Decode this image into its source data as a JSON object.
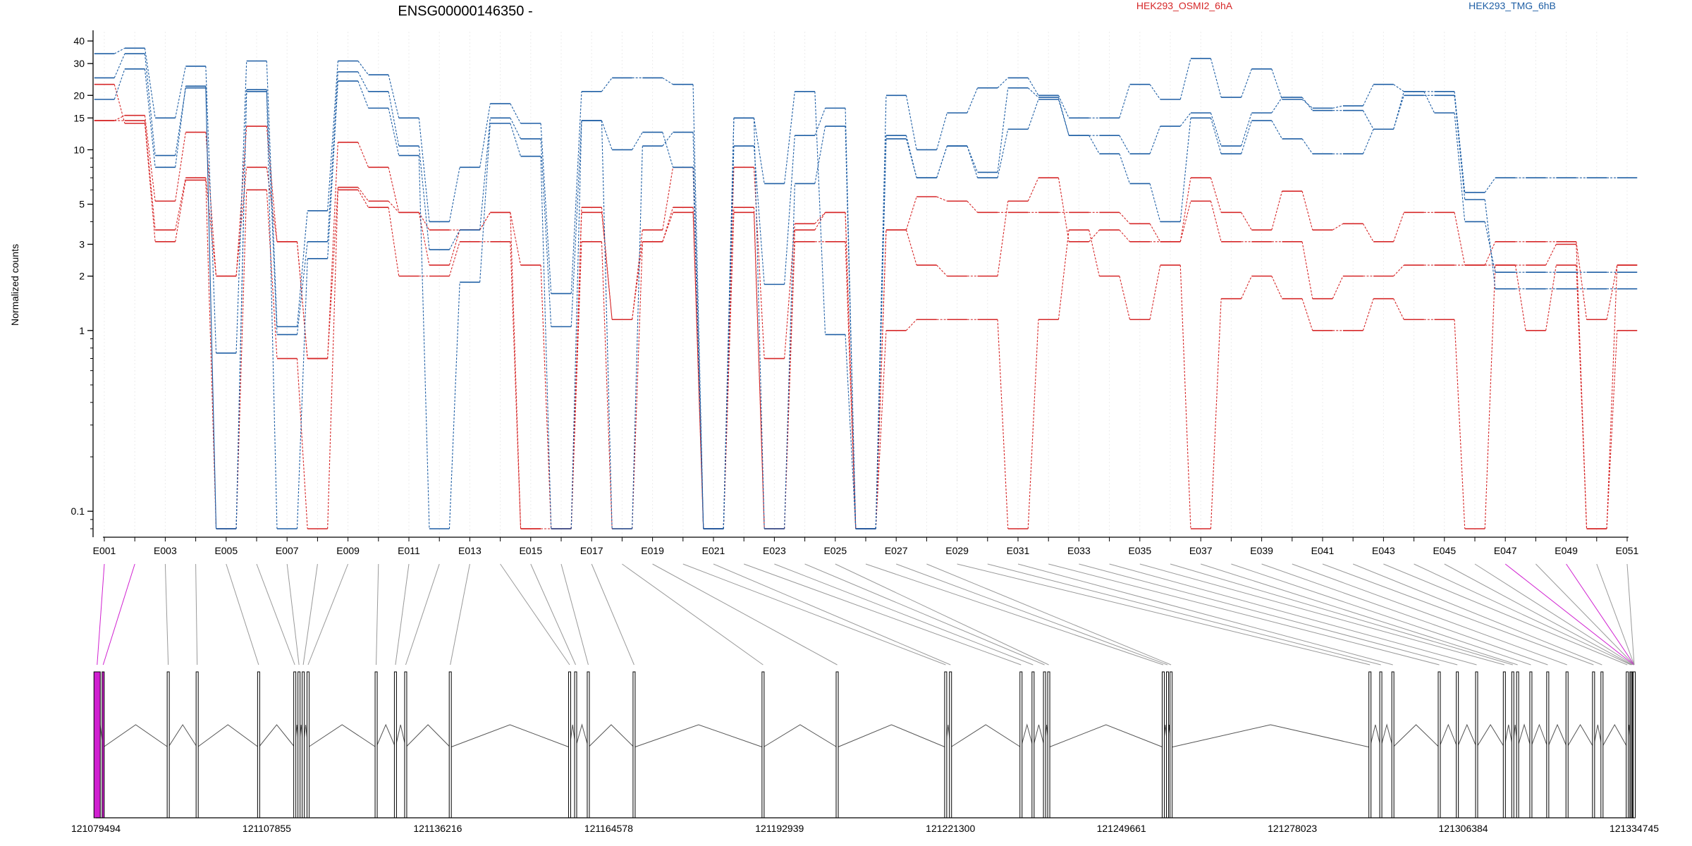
{
  "chart_data": {
    "type": "line",
    "title": "ENSG00000146350 -",
    "ylabel": "Normalized counts",
    "y_scale": "log",
    "ylim": [
      0.08,
      45
    ],
    "y_ticks": [
      {
        "value": 0.1,
        "label": "0.1"
      },
      {
        "value": 1,
        "label": "1"
      },
      {
        "value": 2,
        "label": "2"
      },
      {
        "value": 3,
        "label": "3"
      },
      {
        "value": 5,
        "label": "5"
      },
      {
        "value": 10,
        "label": "10"
      },
      {
        "value": 15,
        "label": "15"
      },
      {
        "value": 20,
        "label": "20"
      },
      {
        "value": 30,
        "label": "30"
      },
      {
        "value": 40,
        "label": "40"
      }
    ],
    "legend_placement": "top-right",
    "exon_labels": [
      "E001",
      "E003",
      "E005",
      "E007",
      "E009",
      "E011",
      "E013",
      "E015",
      "E017",
      "E019",
      "E021",
      "E023",
      "E025",
      "E027",
      "E029",
      "E031",
      "E033",
      "E035",
      "E037",
      "E039",
      "E041",
      "E043",
      "E045",
      "E047",
      "E049",
      "E051"
    ],
    "n_exons": 51,
    "series": [
      {
        "name": "HEK293_OSMI2_6hA",
        "color": "#d62728",
        "replicates": [
          [
            14.5,
            15.5,
            5.2,
            12.5,
            2.0,
            13.5,
            3.1,
            0.7,
            11.0,
            8.0,
            4.5,
            3.6,
            3.6,
            4.5,
            2.3,
            0.08,
            4.8,
            1.15,
            3.6,
            8.0,
            0.08,
            8.0,
            0.7,
            3.9,
            4.5,
            0.08,
            3.6,
            5.5,
            5.2,
            4.5,
            4.5,
            4.5,
            4.5,
            4.5,
            3.9,
            3.1,
            7.0,
            4.5,
            3.6,
            5.9,
            3.6,
            3.9,
            3.1,
            4.5,
            4.5,
            2.3,
            3.1,
            3.1,
            3.1,
            1.15,
            2.3
          ],
          [
            14.5,
            14.5,
            3.6,
            7.0,
            2.0,
            8.0,
            3.1,
            0.7,
            6.2,
            5.2,
            4.5,
            2.3,
            3.6,
            4.5,
            0.08,
            0.08,
            4.5,
            1.15,
            3.1,
            4.8,
            0.08,
            4.8,
            0.08,
            3.6,
            4.5,
            0.08,
            3.6,
            2.3,
            2.0,
            2.0,
            5.2,
            7.0,
            3.1,
            3.6,
            3.1,
            3.1,
            5.2,
            3.1,
            3.1,
            3.1,
            1.5,
            2.0,
            2.0,
            2.3,
            2.3,
            2.3,
            2.3,
            2.3,
            3.0,
            0.08,
            2.3
          ],
          [
            23.0,
            14.0,
            3.1,
            6.8,
            0.08,
            6.0,
            0.7,
            0.08,
            6.0,
            4.8,
            2.0,
            2.0,
            3.1,
            3.1,
            0.08,
            0.08,
            3.1,
            0.08,
            3.1,
            4.5,
            0.08,
            4.5,
            0.08,
            3.1,
            3.1,
            0.08,
            1.0,
            1.15,
            1.15,
            1.15,
            0.08,
            1.15,
            3.6,
            2.0,
            1.15,
            2.3,
            0.08,
            1.5,
            2.0,
            1.5,
            1.0,
            1.0,
            1.5,
            1.15,
            1.15,
            0.08,
            2.3,
            1.0,
            2.3,
            0.08,
            1.0
          ]
        ]
      },
      {
        "name": "HEK293_TMG_6hB",
        "color": "#1f5fa5",
        "replicates": [
          [
            34.0,
            36.5,
            15.0,
            29.0,
            0.75,
            31.0,
            1.05,
            4.6,
            31.0,
            26.0,
            15.0,
            4.0,
            8.0,
            18.0,
            14.0,
            1.6,
            21.0,
            25.0,
            25.0,
            23.0,
            0.08,
            15.0,
            6.5,
            21.0,
            0.95,
            0.08,
            20.0,
            10.0,
            16.0,
            22.0,
            25.0,
            20.0,
            15.0,
            15.0,
            23.0,
            19.0,
            32.0,
            19.5,
            28.0,
            19.0,
            17.0,
            17.5,
            23.0,
            21.0,
            21.0,
            5.8,
            7.0,
            7.0,
            7.0,
            7.0,
            7.0
          ],
          [
            25.0,
            34.0,
            9.3,
            22.0,
            0.08,
            21.0,
            0.95,
            3.1,
            27.0,
            21.0,
            10.5,
            2.8,
            3.6,
            15.0,
            11.5,
            1.05,
            14.5,
            10.0,
            12.5,
            8.0,
            0.08,
            10.5,
            1.8,
            12.0,
            17.0,
            0.08,
            12.0,
            7.0,
            10.5,
            7.5,
            22.0,
            19.5,
            12.0,
            12.0,
            9.5,
            13.5,
            16.0,
            10.5,
            16.0,
            19.5,
            16.5,
            16.5,
            13.0,
            20.0,
            20.0,
            5.3,
            1.7,
            1.7,
            1.7,
            1.7,
            1.7
          ],
          [
            19.0,
            28.0,
            8.0,
            22.5,
            0.08,
            21.5,
            0.08,
            2.5,
            24.0,
            17.0,
            9.3,
            0.08,
            1.85,
            14.0,
            9.2,
            0.08,
            14.5,
            0.08,
            10.5,
            12.5,
            0.08,
            15.0,
            0.08,
            6.5,
            13.5,
            0.08,
            11.5,
            7.0,
            10.5,
            7.0,
            13.0,
            19.0,
            12.0,
            9.5,
            6.5,
            4.0,
            15.0,
            9.5,
            14.5,
            11.5,
            9.5,
            9.5,
            13.0,
            21.0,
            16.0,
            4.0,
            2.1,
            2.1,
            2.1,
            2.1,
            2.1
          ]
        ]
      }
    ],
    "gene_model": {
      "coordinate_ticks": [
        "121079494",
        "121107855",
        "121136216",
        "121164578",
        "121192939",
        "121221300",
        "121249661",
        "121278023",
        "121306384",
        "121334745"
      ],
      "coord_start": 121079494,
      "coord_end": 121334745,
      "highlight_color": "#d020d0",
      "highlighted_exons": [
        1,
        2,
        47,
        49
      ],
      "exon_positions": [
        121079700,
        121080700,
        121091500,
        121096300,
        121106500,
        121112500,
        121113200,
        121113900,
        121114700,
        121126000,
        121129200,
        121130900,
        121138300,
        121158100,
        121159100,
        121161200,
        121168800,
        121190200,
        121202500,
        121220500,
        121221300,
        121233000,
        121235000,
        121236900,
        121237600,
        121256600,
        121257300,
        121257900,
        121290900,
        121292700,
        121294700,
        121302400,
        121305400,
        121308600,
        121313200,
        121314600,
        121315400,
        121317600,
        121320400,
        121323600,
        121328000,
        121329400,
        121333600,
        121334200,
        121334400,
        121334600,
        121334700,
        121334745,
        121334745,
        121334745,
        121334745
      ]
    }
  }
}
